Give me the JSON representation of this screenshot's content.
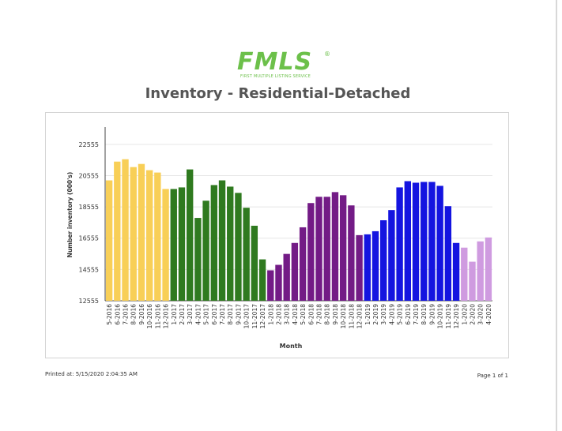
{
  "logo": {
    "text": "FMLS",
    "registered": "®",
    "subtitle": "FIRST MULTIPLE LISTING SERVICE",
    "color": "#6cc04a"
  },
  "report_title": "Inventory - Residential-Detached",
  "footer": {
    "printed_label": "Printed at:",
    "printed_value": "5/15/2020 2:04:35 AM",
    "page": "Page 1 of 1"
  },
  "chart_data": {
    "type": "bar",
    "title": "",
    "xlabel": "Month",
    "ylabel": "Number inventory (000's)",
    "ylim": [
      12555,
      23555
    ],
    "yticks": [
      12555,
      14555,
      16555,
      18555,
      20555,
      22555
    ],
    "grid": true,
    "series_colors": {
      "2016": "#f8cf57",
      "2017": "#2f7a1f",
      "2018": "#731b86",
      "2019": "#1414e0",
      "2020": "#cf9be0"
    },
    "categories": [
      "5-2016",
      "6-2016",
      "7-2016",
      "8-2016",
      "9-2016",
      "10-2016",
      "11-2016",
      "12-2016",
      "1-2017",
      "2-2017",
      "3-2017",
      "4-2017",
      "5-2017",
      "6-2017",
      "7-2017",
      "8-2017",
      "9-2017",
      "10-2017",
      "11-2017",
      "12-2017",
      "1-2018",
      "2-2018",
      "3-2018",
      "4-2018",
      "5-2018",
      "6-2018",
      "7-2018",
      "8-2018",
      "9-2018",
      "10-2018",
      "11-2018",
      "12-2018",
      "1-2019",
      "2-2019",
      "3-2019",
      "4-2019",
      "5-2019",
      "6-2019",
      "7-2019",
      "8-2019",
      "9-2019",
      "10-2019",
      "11-2019",
      "12-2019",
      "1-2020",
      "2-2020",
      "3-2020",
      "4-2020"
    ],
    "values": [
      20250,
      21450,
      21600,
      21100,
      21300,
      20900,
      20750,
      19700,
      19700,
      19800,
      20950,
      17850,
      18950,
      19950,
      20250,
      19850,
      19450,
      18500,
      17350,
      15200,
      14500,
      14850,
      15550,
      16250,
      17250,
      18800,
      19200,
      19200,
      19500,
      19300,
      18650,
      16750,
      16800,
      17000,
      17700,
      18350,
      19800,
      20200,
      20100,
      20150,
      20150,
      19900,
      18600,
      16250,
      15950,
      15050,
      16350,
      16600
    ]
  }
}
